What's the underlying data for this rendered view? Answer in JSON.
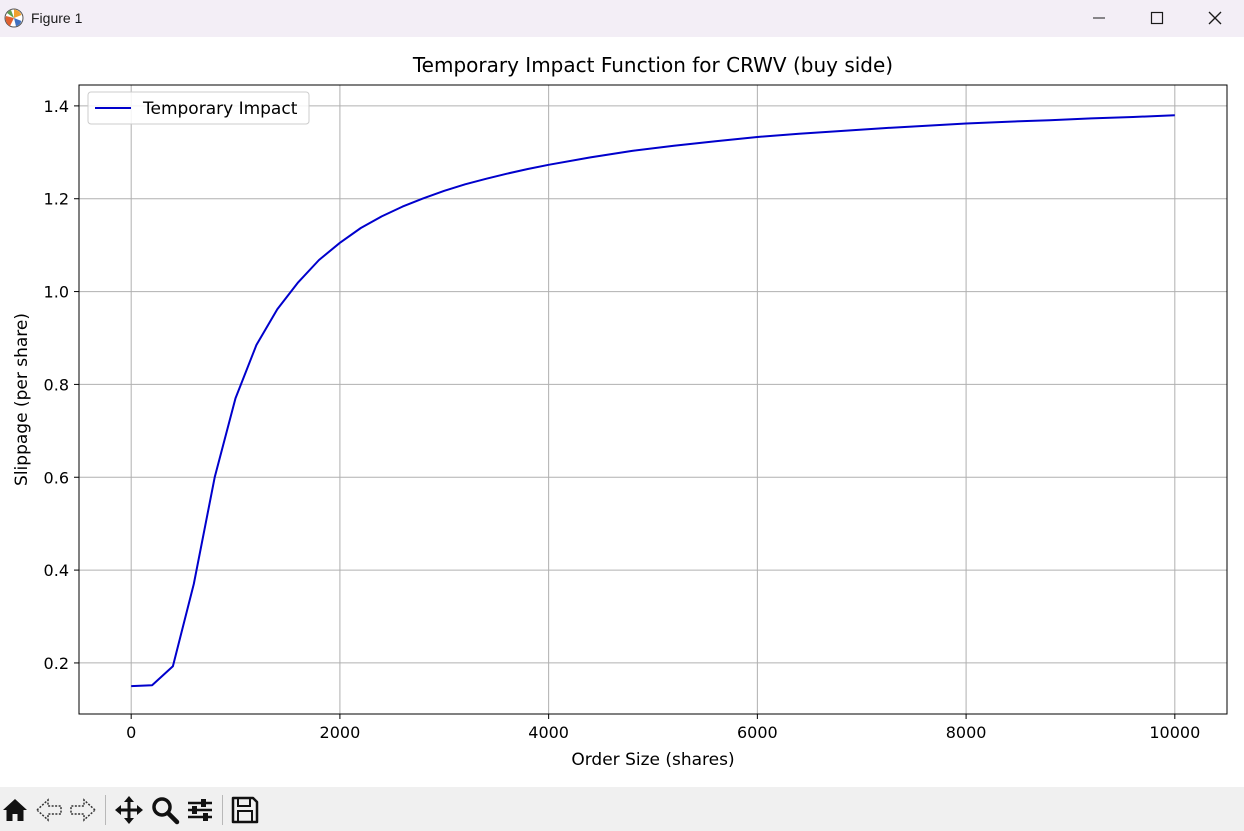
{
  "window": {
    "title": "Figure 1"
  },
  "toolbar": {
    "buttons": [
      "home-icon",
      "back-arrow-icon",
      "forward-arrow-icon",
      "pan-move-icon",
      "zoom-magnifier-icon",
      "configure-subplots-icon",
      "save-floppy-icon"
    ]
  },
  "chart_data": {
    "type": "line",
    "title": "Temporary Impact Function for CRWV (buy side)",
    "xlabel": "Order Size (shares)",
    "ylabel": "Slippage (per share)",
    "xlim": [
      -500,
      10500
    ],
    "ylim": [
      0.09,
      1.445
    ],
    "xticks": [
      0,
      2000,
      4000,
      6000,
      8000,
      10000
    ],
    "xtick_labels": [
      "0",
      "2000",
      "4000",
      "6000",
      "8000",
      "10000"
    ],
    "yticks": [
      0.2,
      0.4,
      0.6,
      0.8,
      1.0,
      1.2,
      1.4
    ],
    "ytick_labels": [
      "0.2",
      "0.4",
      "0.6",
      "0.8",
      "1.0",
      "1.2",
      "1.4"
    ],
    "grid": true,
    "legend_position": "upper left",
    "series": [
      {
        "name": "Temporary Impact",
        "color": "#0000cc",
        "x": [
          0,
          200,
          400,
          600,
          800,
          1000,
          1200,
          1400,
          1600,
          1800,
          2000,
          2200,
          2400,
          2600,
          2800,
          3000,
          3200,
          3400,
          3600,
          3800,
          4000,
          4400,
          4800,
          5200,
          5600,
          6000,
          6400,
          6800,
          7200,
          7600,
          8000,
          8400,
          8800,
          9200,
          9600,
          10000
        ],
        "y": [
          0.15,
          0.152,
          0.193,
          0.37,
          0.6,
          0.77,
          0.885,
          0.962,
          1.02,
          1.068,
          1.105,
          1.137,
          1.162,
          1.183,
          1.201,
          1.217,
          1.231,
          1.243,
          1.254,
          1.264,
          1.273,
          1.289,
          1.303,
          1.314,
          1.324,
          1.333,
          1.34,
          1.346,
          1.352,
          1.357,
          1.362,
          1.366,
          1.369,
          1.373,
          1.376,
          1.38
        ]
      }
    ]
  }
}
